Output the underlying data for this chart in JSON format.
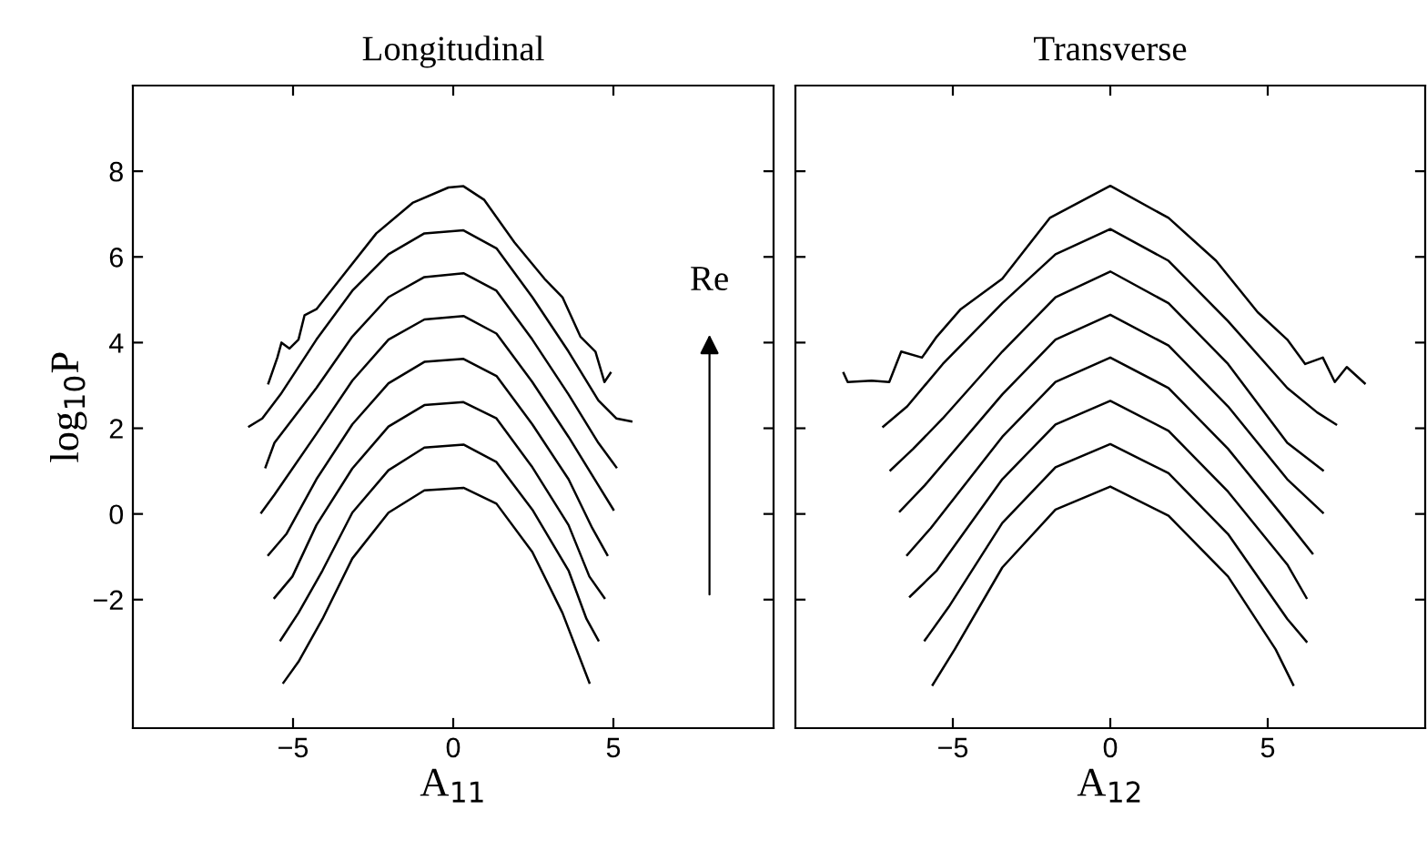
{
  "chart_data": [
    {
      "type": "line",
      "title": "Longitudinal",
      "xlabel": "A$_{11}$",
      "ylabel": "log$_{10}$P",
      "xlim": [
        -10,
        10
      ],
      "ylim": [
        -5,
        10
      ],
      "xticks": [
        -5,
        0,
        5
      ],
      "yticks": [
        -2,
        0,
        2,
        4,
        6,
        8
      ],
      "grid": false,
      "legend": false,
      "marker": "none",
      "line_style": "solid",
      "annotations": [
        "Re"
      ],
      "series": [
        {
          "color": "#000000",
          "x": [
            -5.77,
            -5.49,
            -5.36,
            -5.11,
            -4.83,
            -4.64,
            -4.27,
            -3.52,
            -2.4,
            -1.27,
            -0.15,
            0.32,
            0.97,
            1.91,
            2.85,
            3.41,
            3.97,
            4.44,
            4.72,
            4.91
          ],
          "values": [
            3.05,
            3.65,
            4.0,
            3.86,
            4.07,
            4.64,
            4.78,
            5.49,
            6.55,
            7.26,
            7.62,
            7.65,
            7.33,
            6.34,
            5.49,
            5.06,
            4.14,
            3.79,
            3.08,
            3.29
          ]
        },
        {
          "color": "#000000",
          "x": [
            -6.37,
            -5.96,
            -5.39,
            -4.27,
            -3.15,
            -2.02,
            -0.9,
            0.32,
            1.35,
            2.47,
            3.6,
            4.53,
            5.09,
            5.56
          ],
          "values": [
            2.04,
            2.23,
            2.79,
            4.07,
            5.21,
            6.06,
            6.55,
            6.62,
            6.2,
            5.06,
            3.79,
            2.65,
            2.23,
            2.16
          ]
        },
        {
          "color": "#000000",
          "x": [
            -5.86,
            -5.58,
            -4.27,
            -3.15,
            -2.02,
            -0.9,
            0.32,
            1.35,
            2.47,
            3.6,
            4.53,
            5.09
          ],
          "values": [
            1.09,
            1.66,
            2.94,
            4.14,
            5.06,
            5.53,
            5.62,
            5.21,
            4.07,
            2.79,
            1.66,
            1.09
          ]
        },
        {
          "color": "#000000",
          "x": [
            -5.99,
            -5.58,
            -4.27,
            -3.15,
            -2.02,
            -0.9,
            0.32,
            1.35,
            2.47,
            3.6,
            4.53,
            5.0
          ],
          "values": [
            0.03,
            0.45,
            1.87,
            3.11,
            4.07,
            4.54,
            4.62,
            4.21,
            3.08,
            1.8,
            0.67,
            0.1
          ]
        },
        {
          "color": "#000000",
          "x": [
            -5.77,
            -5.21,
            -4.27,
            -3.15,
            -2.02,
            -0.9,
            0.32,
            1.35,
            2.47,
            3.6,
            4.34,
            4.81
          ],
          "values": [
            -0.96,
            -0.47,
            0.81,
            2.09,
            3.05,
            3.55,
            3.62,
            3.22,
            2.09,
            0.81,
            -0.33,
            -0.96
          ]
        },
        {
          "color": "#000000",
          "x": [
            -5.58,
            -5.02,
            -4.27,
            -3.15,
            -2.02,
            -0.9,
            0.32,
            1.35,
            2.47,
            3.6,
            4.25,
            4.72
          ],
          "values": [
            -1.96,
            -1.46,
            -0.26,
            1.06,
            2.04,
            2.54,
            2.61,
            2.23,
            1.09,
            -0.26,
            -1.46,
            -1.96
          ]
        },
        {
          "color": "#000000",
          "x": [
            -5.39,
            -4.83,
            -4.08,
            -3.15,
            -2.02,
            -0.9,
            0.32,
            1.35,
            2.47,
            3.6,
            4.16,
            4.53
          ],
          "values": [
            -2.95,
            -2.31,
            -1.32,
            0.03,
            1.02,
            1.55,
            1.62,
            1.21,
            0.1,
            -1.32,
            -2.45,
            -2.95
          ]
        },
        {
          "color": "#000000",
          "x": [
            -5.3,
            -4.83,
            -4.08,
            -3.15,
            -2.02,
            -0.9,
            0.32,
            1.35,
            2.47,
            3.41,
            4.25
          ],
          "values": [
            -3.94,
            -3.45,
            -2.45,
            -1.04,
            0.03,
            0.55,
            0.61,
            0.24,
            -0.89,
            -2.31,
            -3.94
          ]
        }
      ]
    },
    {
      "type": "line",
      "title": "Transverse",
      "xlabel": "A$_{12}$",
      "xlim": [
        -10,
        10
      ],
      "ylim": [
        -5,
        10
      ],
      "xticks": [
        -5,
        0,
        5
      ],
      "yticks": [
        -2,
        0,
        2,
        4,
        6,
        8
      ],
      "tick_labels": "x",
      "grid": false,
      "legend": false,
      "marker": "none",
      "line_style": "solid",
      "series": [
        {
          "color": "#000000",
          "x": [
            -8.47,
            -8.34,
            -7.58,
            -7.02,
            -6.64,
            -5.98,
            -5.51,
            -4.75,
            -3.43,
            -1.92,
            0,
            1.85,
            3.36,
            4.68,
            5.62,
            6.19,
            6.75,
            7.13,
            7.51,
            8.08
          ],
          "values": [
            3.29,
            3.08,
            3.11,
            3.08,
            3.79,
            3.65,
            4.14,
            4.78,
            5.49,
            6.91,
            7.66,
            6.91,
            5.91,
            4.71,
            4.07,
            3.5,
            3.65,
            3.08,
            3.43,
            3.05
          ]
        },
        {
          "color": "#000000",
          "x": [
            -7.21,
            -6.45,
            -5.32,
            -3.43,
            -1.74,
            0,
            1.85,
            3.74,
            5.62,
            6.57,
            7.17
          ],
          "values": [
            2.04,
            2.51,
            3.5,
            4.92,
            6.06,
            6.65,
            5.91,
            4.5,
            2.94,
            2.37,
            2.09
          ]
        },
        {
          "color": "#000000",
          "x": [
            -6.98,
            -6.26,
            -5.32,
            -3.43,
            -1.74,
            0,
            1.85,
            3.74,
            5.62,
            6.75
          ],
          "values": [
            1.02,
            1.52,
            2.23,
            3.79,
            5.06,
            5.66,
            4.92,
            3.5,
            1.66,
            1.02
          ]
        },
        {
          "color": "#000000",
          "x": [
            -6.68,
            -5.89,
            -3.43,
            -1.74,
            0,
            1.85,
            3.74,
            5.62,
            6.75
          ],
          "values": [
            0.06,
            0.67,
            2.79,
            4.07,
            4.65,
            3.93,
            2.51,
            0.81,
            0.03
          ]
        },
        {
          "color": "#000000",
          "x": [
            -6.45,
            -5.7,
            -3.43,
            -1.74,
            0,
            1.85,
            3.74,
            5.62,
            6.42
          ],
          "values": [
            -0.96,
            -0.33,
            1.8,
            3.08,
            3.65,
            2.94,
            1.52,
            -0.18,
            -0.92
          ]
        },
        {
          "color": "#000000",
          "x": [
            -6.36,
            -5.51,
            -3.43,
            -1.74,
            0,
            1.85,
            3.74,
            5.62,
            6.23
          ],
          "values": [
            -1.93,
            -1.32,
            0.81,
            2.09,
            2.64,
            1.94,
            0.52,
            -1.18,
            -1.96
          ]
        },
        {
          "color": "#000000",
          "x": [
            -5.89,
            -5.13,
            -3.43,
            -1.74,
            0,
            1.85,
            3.74,
            5.62,
            6.23
          ],
          "values": [
            -2.95,
            -2.17,
            -0.21,
            1.09,
            1.63,
            0.95,
            -0.47,
            -2.45,
            -2.98
          ]
        },
        {
          "color": "#000000",
          "x": [
            -5.64,
            -4.94,
            -3.43,
            -1.74,
            0,
            1.85,
            3.74,
            5.25,
            5.81
          ],
          "values": [
            -3.99,
            -3.16,
            -1.25,
            0.1,
            0.64,
            -0.04,
            -1.46,
            -3.16,
            -3.99
          ]
        }
      ]
    }
  ]
}
